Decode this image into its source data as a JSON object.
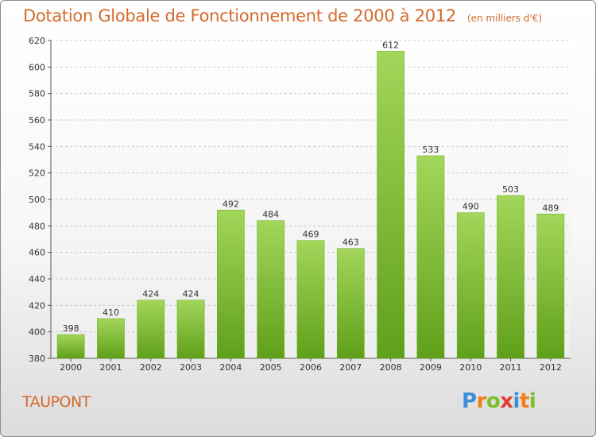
{
  "chart_data": {
    "type": "bar",
    "title": "Dotation Globale de Fonctionnement de 2000 à 2012",
    "subtitle": "(en milliers d'€)",
    "categories": [
      "2000",
      "2001",
      "2002",
      "2003",
      "2004",
      "2005",
      "2006",
      "2007",
      "2008",
      "2009",
      "2010",
      "2011",
      "2012"
    ],
    "values": [
      398,
      410,
      424,
      424,
      492,
      484,
      469,
      463,
      612,
      533,
      490,
      503,
      489
    ],
    "ylim": [
      380,
      620
    ],
    "yticks": [
      380,
      400,
      420,
      440,
      460,
      480,
      500,
      520,
      540,
      560,
      580,
      600,
      620
    ],
    "grid": true,
    "bar_color": "#7fbf2a",
    "xlabel": "",
    "ylabel": ""
  },
  "commune": "TAUPONT",
  "logo": {
    "letters": [
      "P",
      "r",
      "o",
      "x",
      "i",
      "t",
      "i"
    ],
    "colors": [
      "#3a8fd6",
      "#ef7f1a",
      "#7cbf2a",
      "#e53a2f",
      "#3a8fd6",
      "#ef7f1a",
      "#7cbf2a"
    ]
  }
}
